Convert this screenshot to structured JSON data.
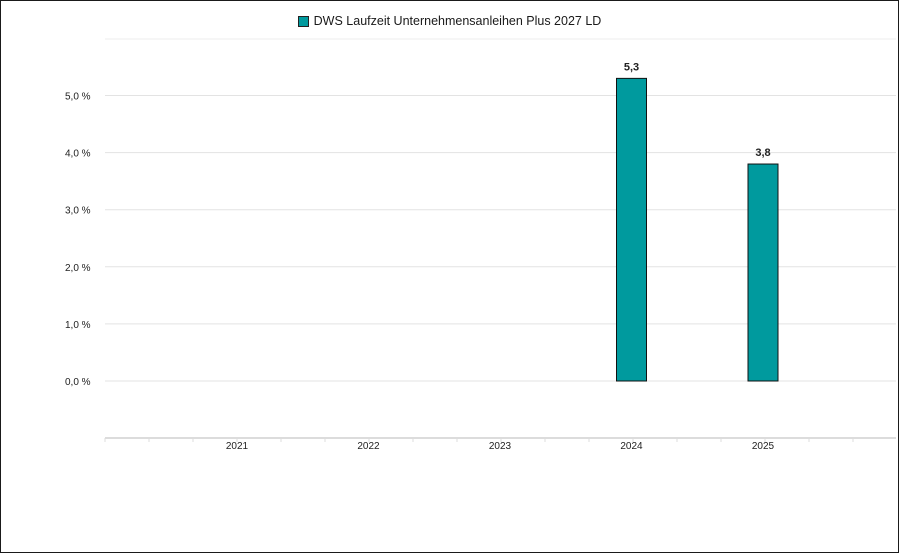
{
  "chart_data": {
    "type": "bar",
    "categories": [
      "2021",
      "2022",
      "2023",
      "2024",
      "2025"
    ],
    "series": [
      {
        "name": "DWS Laufzeit Unternehmensanleihen Plus 2027 LD",
        "values": [
          null,
          null,
          null,
          5.3,
          3.8
        ],
        "color": "#009a9e"
      }
    ],
    "data_labels": [
      "",
      "",
      "",
      "5,3",
      "3,8"
    ],
    "y_ticks": [
      "0,0 %",
      "1,0 %",
      "2,0 %",
      "3,0 %",
      "4,0 %",
      "5,0 %"
    ],
    "ylim": [
      0,
      5
    ],
    "grid": true,
    "legend_position": "top-center"
  }
}
